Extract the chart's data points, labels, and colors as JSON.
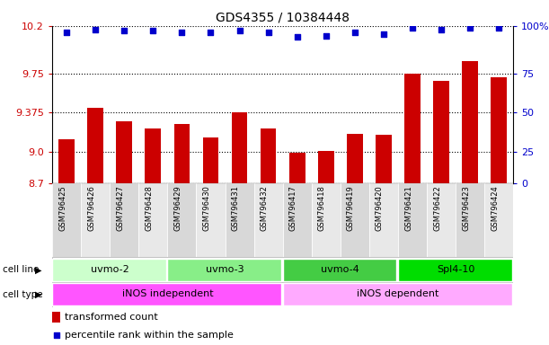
{
  "title": "GDS4355 / 10384448",
  "samples": [
    "GSM796425",
    "GSM796426",
    "GSM796427",
    "GSM796428",
    "GSM796429",
    "GSM796430",
    "GSM796431",
    "GSM796432",
    "GSM796417",
    "GSM796418",
    "GSM796419",
    "GSM796420",
    "GSM796421",
    "GSM796422",
    "GSM796423",
    "GSM796424"
  ],
  "red_values": [
    9.12,
    9.42,
    9.29,
    9.22,
    9.27,
    9.14,
    9.375,
    9.22,
    8.99,
    9.01,
    9.17,
    9.16,
    9.75,
    9.68,
    9.87,
    9.71
  ],
  "blue_values": [
    96,
    98,
    97,
    97,
    96,
    96,
    97,
    96,
    93,
    94,
    96,
    95,
    99,
    98,
    99,
    99
  ],
  "y_min": 8.7,
  "y_max": 10.2,
  "y_ticks_red": [
    8.7,
    9.0,
    9.375,
    9.75,
    10.2
  ],
  "y_ticks_blue": [
    0,
    25,
    50,
    75,
    100
  ],
  "cell_line_groups": [
    {
      "label": "uvmo-2",
      "start": 0,
      "end": 4,
      "color": "#ccffcc"
    },
    {
      "label": "uvmo-3",
      "start": 4,
      "end": 8,
      "color": "#88ee88"
    },
    {
      "label": "uvmo-4",
      "start": 8,
      "end": 12,
      "color": "#44cc44"
    },
    {
      "label": "Spl4-10",
      "start": 12,
      "end": 16,
      "color": "#00dd00"
    }
  ],
  "cell_type_groups": [
    {
      "label": "iNOS independent",
      "start": 0,
      "end": 8,
      "color": "#ff55ff"
    },
    {
      "label": "iNOS dependent",
      "start": 8,
      "end": 16,
      "color": "#ffaaff"
    }
  ],
  "bar_color": "#cc0000",
  "dot_color": "#0000cc",
  "background_color": "#ffffff",
  "grid_color": "#000000",
  "sample_bg_even": "#d8d8d8",
  "sample_bg_odd": "#e8e8e8",
  "label_fontsize": 7,
  "title_fontsize": 10
}
